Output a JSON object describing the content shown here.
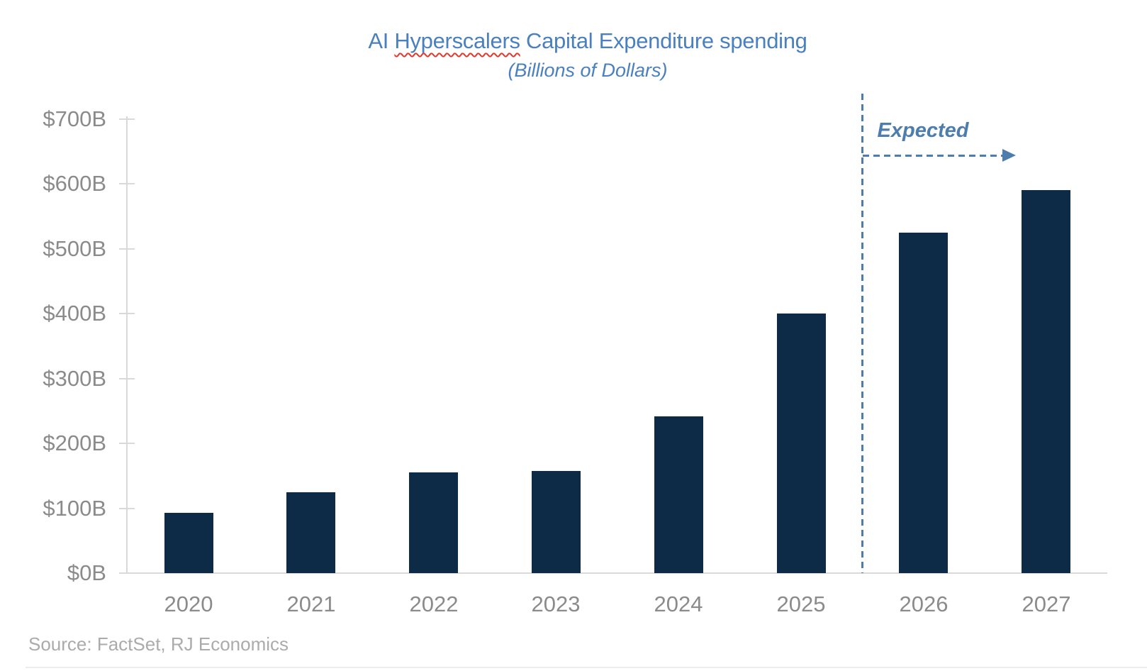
{
  "chart_data": {
    "type": "bar",
    "title": "AI Hyperscalers Capital Expenditure spending",
    "title_parts": {
      "prefix": "AI ",
      "misspelled_word": "Hyperscalers",
      "suffix": " Capital Expenditure spending"
    },
    "subtitle": "(Billions of Dollars)",
    "categories": [
      "2020",
      "2021",
      "2022",
      "2023",
      "2024",
      "2025",
      "2026",
      "2027"
    ],
    "values": [
      93,
      125,
      155,
      157,
      242,
      400,
      525,
      590
    ],
    "ylabel": "",
    "xlabel": "",
    "ylim": [
      0,
      700
    ],
    "y_ticks": [
      {
        "value": 0,
        "label": "$0B"
      },
      {
        "value": 100,
        "label": "$100B"
      },
      {
        "value": 200,
        "label": "$200B"
      },
      {
        "value": 300,
        "label": "$300B"
      },
      {
        "value": 400,
        "label": "$400B"
      },
      {
        "value": 500,
        "label": "$500B"
      },
      {
        "value": 600,
        "label": "$600B"
      },
      {
        "value": 700,
        "label": "$700B"
      }
    ],
    "grid": "off",
    "legend": "none",
    "annotation": {
      "label": "Expected",
      "divider_between": [
        "2025",
        "2026"
      ],
      "applies_to_categories": [
        "2026",
        "2027"
      ]
    },
    "source": "Source: FactSet, RJ Economics"
  },
  "colors": {
    "bar": "#0d2a47",
    "title": "#4a80bd",
    "annotation": "#4c7dad",
    "axis_labels": "#8b8b8b",
    "axis_lines": "#d9d9d9",
    "source_text": "#ababab",
    "spellcheck_underline": "#e03a2e",
    "background": "#ffffff"
  }
}
